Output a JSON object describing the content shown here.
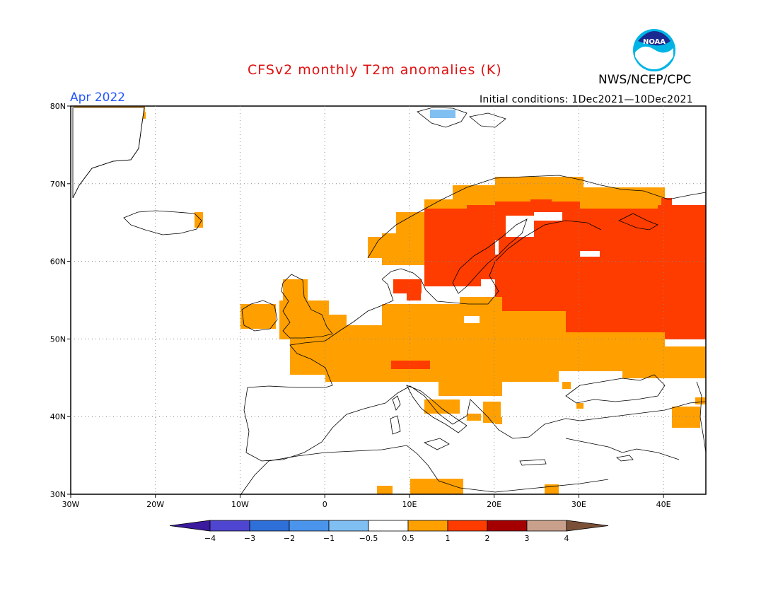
{
  "header": {
    "title": "CFSv2 monthly T2m anomalies (K)",
    "agency": "NWS/NCEP/CPC",
    "logo_text": "NOAA",
    "month": "Apr 2022",
    "initial_conditions": "Initial conditions: 1Dec2021—10Dec2021"
  },
  "map": {
    "lon_range": [
      -30,
      45
    ],
    "lat_range": [
      30,
      80
    ],
    "lon_ticks": [
      "30W",
      "20W",
      "10W",
      "0",
      "10E",
      "20E",
      "30E",
      "40E"
    ],
    "lat_ticks": [
      "80N",
      "70N",
      "60N",
      "50N",
      "40N",
      "30N"
    ],
    "grid": "dotted"
  },
  "legend": {
    "labels": [
      "−4",
      "−3",
      "−2",
      "−1",
      "−0.5",
      "0.5",
      "1",
      "2",
      "3",
      "4"
    ],
    "colors": [
      "#3a1a9e",
      "#4e46d0",
      "#2f6fd8",
      "#4a94ec",
      "#80bff2",
      "#ffffff",
      "#ffa000",
      "#ff3c00",
      "#a50000",
      "#c8a08c",
      "#7a5038"
    ]
  },
  "anomaly_colors": {
    "0.5-1": "#ffa000",
    "1-2": "#ff3c00",
    "-1--0.5": "#80bff2"
  }
}
